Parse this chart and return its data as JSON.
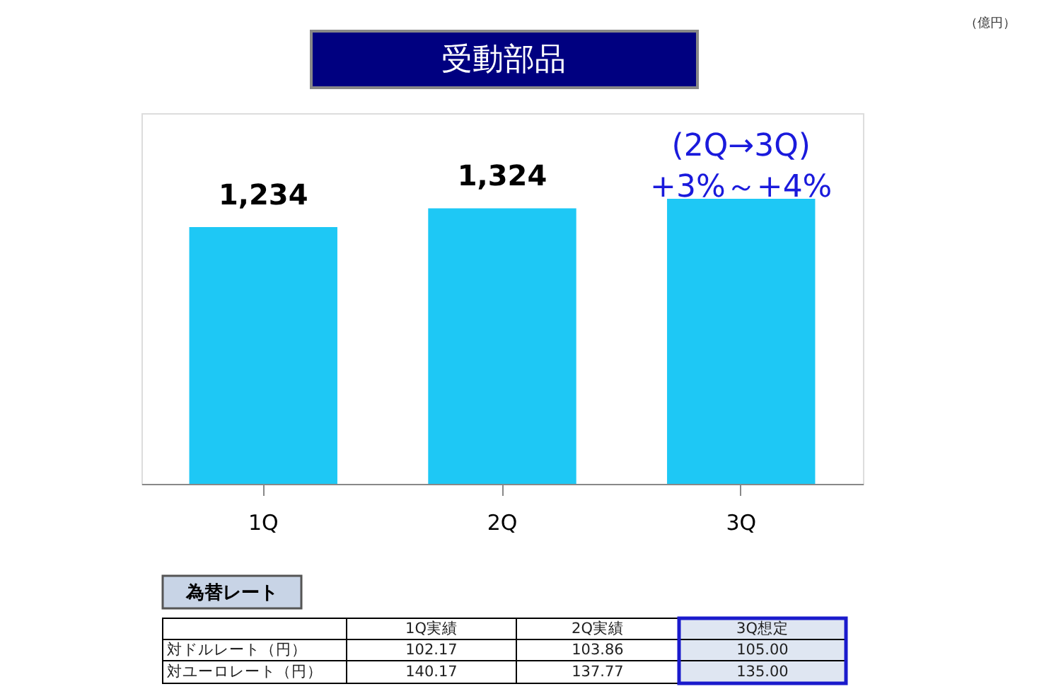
{
  "chart_data": {
    "type": "bar",
    "title": "受動部品",
    "categories": [
      "1Q",
      "2Q",
      "3Q"
    ],
    "values": [
      1234,
      1324,
      1370
    ],
    "value_labels": [
      "1,234",
      "1,324",
      null
    ],
    "color": "#1ec8f5",
    "grid": false,
    "tick_labels": "x",
    "annotations": [
      "（億円）",
      "(2Q→3Q)\n+3%～+4%",
      "為替レート",
      "1Q実績",
      "2Q実績",
      "3Q想定",
      "対ドルレート（円）",
      "102.17",
      "103.86",
      "105.00",
      "対ユーロレート（円）",
      "140.17",
      "137.77",
      "135.00"
    ]
  }
}
